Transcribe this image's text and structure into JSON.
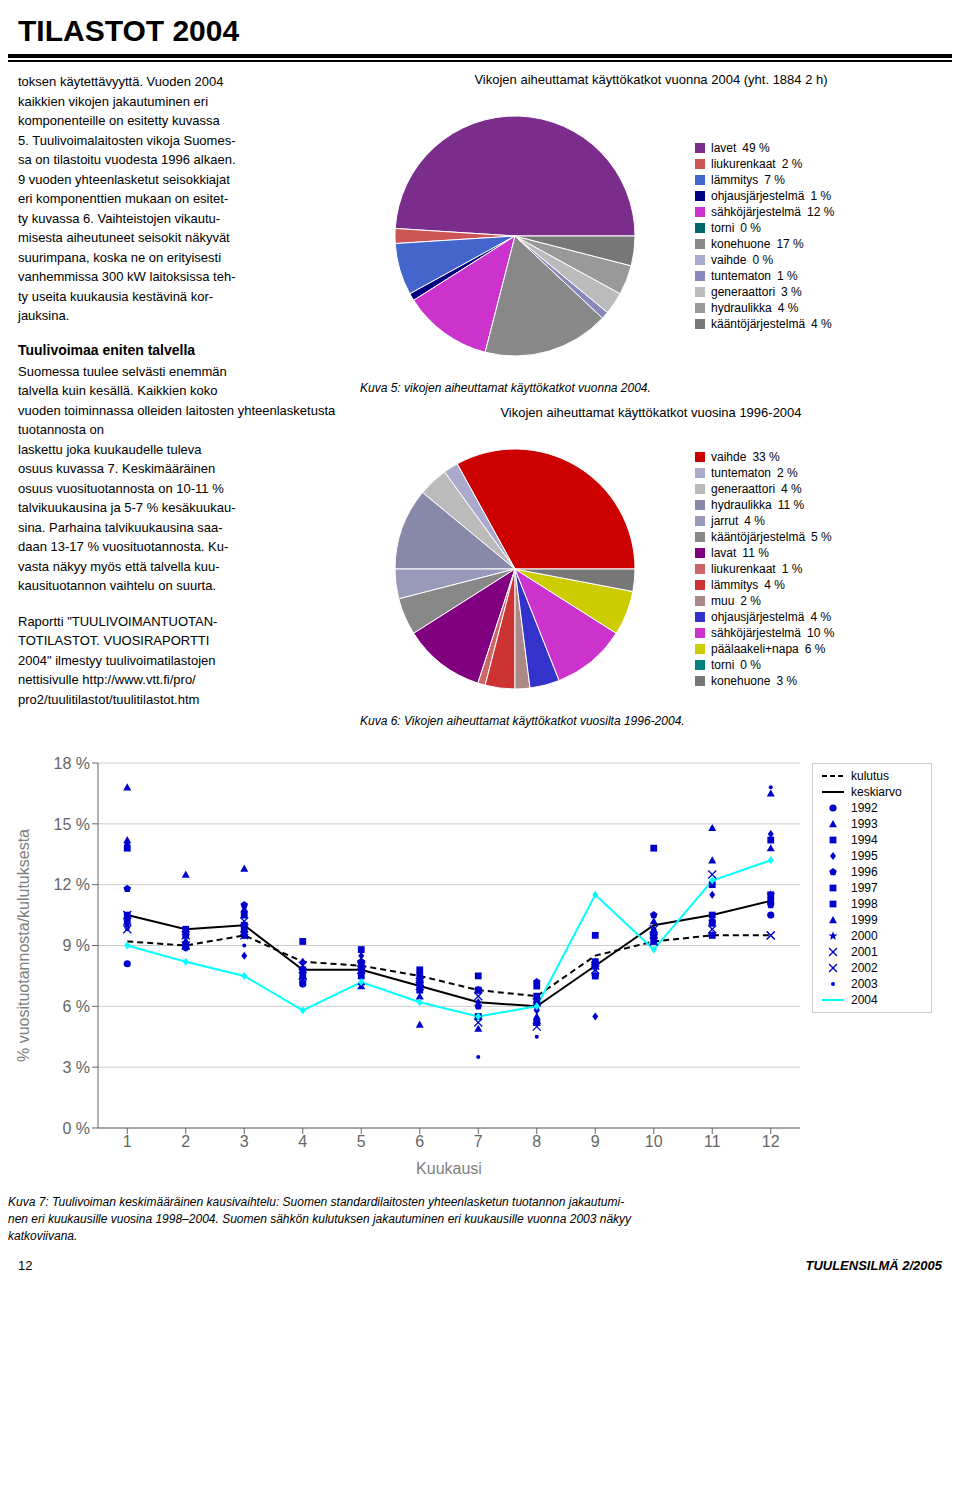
{
  "title": "TILASTOT 2004",
  "annotations": [
    "toksen käytettävyyttä. Vuoden 2004\nkaikkien vikojen jakautuminen eri\nkomponenteille on esitetty kuvassa\n5. Tuulivoimalaitosten vikoja Suomes-\nsa on tilastoitu vuodesta 1996 alkaen.\n9 vuoden yhteenlasketut seisokkiajat\neri komponenttien mukaan on esitet-\nty kuvassa 6. Vaihteistojen vikautu-\nmisesta aiheutuneet seisokit näkyvät\nsuurimpana, koska ne on erityisesti\nvanhemmissa 300 kW laitoksissa teh-\nty useita kuukausia kestävinä kor-\njauksina.",
    "Tuulivoimaa eniten talvella",
    "Suomessa tuulee selvästi enemmän\ntalvella kuin kesällä. Kaikkien koko\nvuoden toiminnassa olleiden laitosten yhteenlasketusta tuotannosta on\nlaskettu joka kuukaudelle tuleva\nosuus kuvassa 7. Keskimääräinen\nosuus vuosituotannosta on 10-11 %\ntalvikuukausina ja 5-7 % kesäkuukau-\nsina. Parhaina talvikuukausina saa-\ndaan 13-17 % vuosituotannosta. Ku-\nvasta näkyy myös että talvella kuu-\nkausituotannon vaihtelu on suurta.",
    "Raportti \"TUULIVOIMANTUOTAN-\nTOTILASTOT. VUOSIRAPORTTI\n2004\" ilmestyy tuulivoimatilastojen\nnettisivulle http://www.vtt.fi/pro/\npro2/tuulitilastot/tuulitilastot.htm",
    "12",
    "TUULENSILMÄ 2/2005"
  ],
  "chart_data": [
    {
      "type": "pie",
      "title": "Vikojen aiheuttamat käyttökatkot vuonna 2004 (yht. 1884 2 h)",
      "annotations": [
        "Kuva 5: vikojen aiheuttamat käyttökatkot vuonna 2004."
      ],
      "categories": [
        "lavet",
        "liukurenkaat",
        "lämmitys",
        "ohjausjärjestelmä",
        "sähköjärjestelmä",
        "torni",
        "konehuone",
        "vaihde",
        "tuntematon",
        "generaattori",
        "hydraulikka",
        "kääntöjärjestelmä"
      ],
      "values": [
        49,
        2,
        7,
        1,
        12,
        0,
        17,
        0,
        1,
        3,
        4,
        4
      ],
      "value_labels": [
        "49 %",
        "2 %",
        "7 %",
        "1 %",
        "12 %",
        "0 %",
        "17 %",
        "0 %",
        "1 %",
        "3 %",
        "4 %",
        "4 %"
      ],
      "colors": [
        "#7b2d8b",
        "#cc5555",
        "#4466cc",
        "#000080",
        "#cc33cc",
        "#006666",
        "#888888",
        "#aaaacc",
        "#8888bb",
        "#bbbbbb",
        "#999999",
        "#777777"
      ],
      "legend": "right"
    },
    {
      "type": "pie",
      "title": "Vikojen aiheuttamat käyttökatkot vuosina 1996-2004",
      "annotations": [
        "Kuva 6: Vikojen aiheuttamat käyttökatkot vuosilta 1996-2004."
      ],
      "categories": [
        "vaihde",
        "tuntematon",
        "generaattori",
        "hydraulikka",
        "jarrut",
        "kääntöjärjestelmä",
        "lavat",
        "liukurenkaat",
        "lämmitys",
        "muu",
        "ohjausjärjestelmä",
        "sähköjärjestelmä",
        "päälaakeli+napa",
        "torni",
        "konehuone"
      ],
      "values": [
        33,
        2,
        4,
        11,
        4,
        5,
        11,
        1,
        4,
        2,
        4,
        10,
        6,
        0,
        3
      ],
      "value_labels": [
        "33 %",
        "2 %",
        "4 %",
        "11 %",
        "4 %",
        "5 %",
        "11 %",
        "1 %",
        "4 %",
        "2 %",
        "4 %",
        "10 %",
        "6 %",
        "0 %",
        "3 %"
      ],
      "colors": [
        "#cc0000",
        "#aaaacc",
        "#bbbbbb",
        "#8888aa",
        "#9999bb",
        "#888888",
        "#800080",
        "#cc6666",
        "#cc3333",
        "#aa8888",
        "#3333cc",
        "#cc33cc",
        "#cccc00",
        "#008080",
        "#777777"
      ],
      "legend": "right"
    },
    {
      "type": "line",
      "annotations": [
        "Kuva 7: Tuulivoiman keskimääräinen kausivaihtelu: Suomen standardilaitosten yhteenlasketun tuotannon jakautumi-\nnen eri kuukausille vuosina 1998–2004. Suomen sähkön kulutuksen jakautuminen eri kuukausille vuonna 2003 näkyy\nkatkoviivana."
      ],
      "xlabel": "Kuukausi",
      "ylabel": "% vuosituotannosta/kulutuksesta",
      "x": [
        1,
        2,
        3,
        4,
        5,
        6,
        7,
        8,
        9,
        10,
        11,
        12
      ],
      "xlim": [
        0.5,
        12.5
      ],
      "xticks": [
        1,
        2,
        3,
        4,
        5,
        6,
        7,
        8,
        9,
        10,
        11,
        12
      ],
      "ylim": [
        0,
        18
      ],
      "yticks": [
        {
          "value": 0,
          "label": "0 %"
        },
        {
          "value": 3,
          "label": "3 %"
        },
        {
          "value": 6,
          "label": "6 %"
        },
        {
          "value": 9,
          "label": "9 %"
        },
        {
          "value": 12,
          "label": "12 %"
        },
        {
          "value": 15,
          "label": "15 %"
        },
        {
          "value": 18,
          "label": "18 %"
        }
      ],
      "grid": "y",
      "legend": "right",
      "series": [
        {
          "name": "kulutus",
          "type": "line",
          "color": "#000000",
          "line_style": "dashed",
          "values": [
            9.2,
            9.0,
            9.5,
            8.2,
            8.0,
            7.5,
            6.8,
            6.5,
            8.5,
            9.2,
            9.5,
            9.5
          ]
        },
        {
          "name": "keskiarvo",
          "type": "line",
          "color": "#000000",
          "line_style": "solid",
          "values": [
            10.5,
            9.8,
            10.0,
            7.8,
            7.8,
            7.0,
            6.2,
            6.0,
            8.0,
            10.0,
            10.5,
            11.2
          ]
        },
        {
          "name": "1992",
          "type": "scatter",
          "color": "#0000cc",
          "marker": "circle",
          "values": [
            8.1,
            8.9,
            9.5,
            7.1,
            7.8,
            7.2,
            6.8,
            6.2,
            8.1,
            9.5,
            10.1,
            10.5
          ]
        },
        {
          "name": "1993",
          "type": "scatter",
          "color": "#0000cc",
          "marker": "triangle",
          "values": [
            14.2,
            12.5,
            12.8,
            7.5,
            7.0,
            5.1,
            4.9,
            5.5,
            8.0,
            9.8,
            13.2,
            13.8
          ]
        },
        {
          "name": "1994",
          "type": "scatter",
          "color": "#0000cc",
          "marker": "square",
          "values": [
            13.8,
            9.0,
            10.0,
            9.2,
            8.8,
            7.5,
            6.8,
            6.5,
            9.5,
            13.8,
            12.0,
            14.2
          ]
        },
        {
          "name": "1995",
          "type": "scatter",
          "color": "#0000cc",
          "marker": "diamond",
          "values": [
            14.0,
            9.2,
            8.5,
            8.2,
            8.5,
            6.8,
            6.2,
            5.8,
            5.5,
            9.8,
            11.5,
            14.5
          ]
        },
        {
          "name": "1996",
          "type": "scatter",
          "color": "#0000cc",
          "marker": "pentagon",
          "values": [
            11.8,
            9.0,
            11.0,
            7.2,
            8.2,
            7.0,
            6.0,
            7.2,
            7.5,
            10.5,
            10.2,
            11.0
          ]
        },
        {
          "name": "1997",
          "type": "scatter",
          "color": "#0000cc",
          "marker": "square",
          "values": [
            10.5,
            9.5,
            10.5,
            7.5,
            8.0,
            7.8,
            7.5,
            7.0,
            7.5,
            9.5,
            9.5,
            11.2
          ]
        },
        {
          "name": "1998",
          "type": "scatter",
          "color": "#0000cc",
          "marker": "square",
          "values": [
            10.2,
            9.8,
            9.8,
            7.8,
            7.5,
            6.8,
            5.5,
            5.2,
            8.2,
            9.2,
            10.5,
            11.5
          ]
        },
        {
          "name": "1999",
          "type": "scatter",
          "color": "#0000cc",
          "marker": "triangle",
          "values": [
            16.8,
            9.0,
            10.8,
            7.5,
            7.2,
            6.5,
            5.5,
            5.2,
            8.2,
            10.2,
            14.8,
            16.5
          ]
        },
        {
          "name": "2000",
          "type": "scatter",
          "color": "#0000cc",
          "marker": "star",
          "values": [
            10.0,
            9.5,
            9.5,
            7.8,
            8.2,
            7.2,
            6.8,
            6.0,
            8.0,
            9.5,
            9.5,
            11.5
          ]
        },
        {
          "name": "2001",
          "type": "scatter",
          "color": "#0000cc",
          "marker": "x",
          "values": [
            9.8,
            9.0,
            9.5,
            8.0,
            8.0,
            7.2,
            5.2,
            5.0,
            7.8,
            9.2,
            9.8,
            9.5
          ]
        },
        {
          "name": "2002",
          "type": "scatter",
          "color": "#0000cc",
          "marker": "x",
          "values": [
            10.5,
            9.5,
            10.2,
            7.5,
            7.8,
            7.0,
            6.5,
            6.2,
            8.0,
            9.8,
            12.5,
            9.5
          ]
        },
        {
          "name": "2003",
          "type": "scatter",
          "color": "#0000cc",
          "marker": "point",
          "values": [
            9.8,
            8.8,
            9.0,
            7.8,
            7.5,
            7.0,
            3.5,
            4.5,
            7.8,
            9.2,
            14.8,
            16.8
          ]
        },
        {
          "name": "2004",
          "type": "line",
          "color": "#00ffff",
          "marker": "diamond",
          "line_style": "solid",
          "values": [
            9.0,
            8.2,
            7.5,
            5.8,
            7.2,
            6.2,
            5.5,
            6.0,
            11.5,
            8.8,
            12.2,
            13.2
          ]
        }
      ]
    }
  ]
}
